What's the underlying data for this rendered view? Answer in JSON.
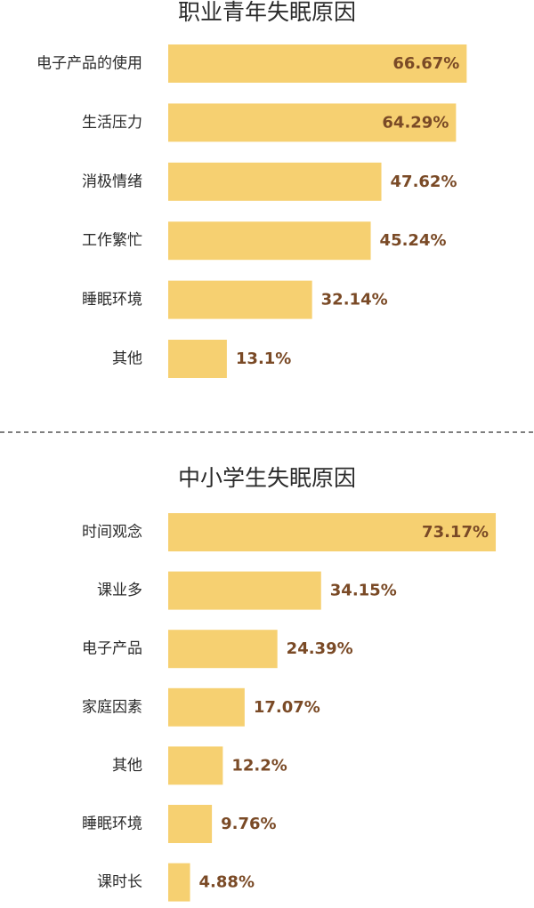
{
  "chart_data": [
    {
      "type": "bar",
      "orientation": "horizontal",
      "title": "职业青年失眠原因",
      "categories": [
        "电子产品的使用",
        "生活压力",
        "消极情绪",
        "工作繁忙",
        "睡眠环境",
        "其他"
      ],
      "values": [
        66.67,
        64.29,
        47.62,
        45.24,
        32.14,
        13.1
      ],
      "value_labels": [
        "66.67%",
        "64.29%",
        "47.62%",
        "45.24%",
        "32.14%",
        "13.1%"
      ],
      "bar_color": "#f6d071",
      "label_color": "#7a4a26"
    },
    {
      "type": "bar",
      "orientation": "horizontal",
      "title": "中小学生失眠原因",
      "categories": [
        "时间观念",
        "课业多",
        "电子产品",
        "家庭因素",
        "其他",
        "睡眠环境",
        "课时长"
      ],
      "values": [
        73.17,
        34.15,
        24.39,
        17.07,
        12.2,
        9.76,
        4.88
      ],
      "value_labels": [
        "73.17%",
        "34.15%",
        "24.39%",
        "17.07%",
        "12.2%",
        "9.76%",
        "4.88%"
      ],
      "bar_color": "#f6d071",
      "label_color": "#7a4a26"
    }
  ]
}
